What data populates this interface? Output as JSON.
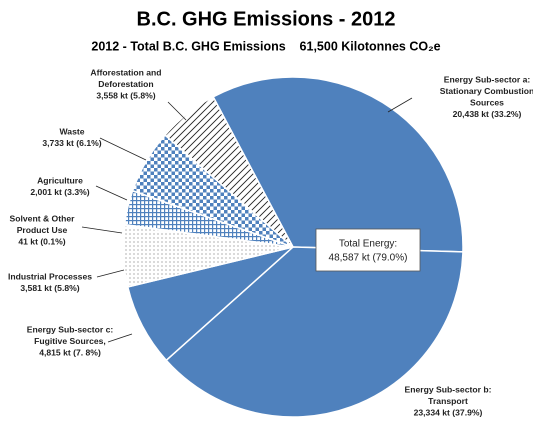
{
  "chart_data": {
    "type": "pie",
    "title": "B.C. GHG Emissions - 2012",
    "subtitle": "2012 - Total B.C. GHG Emissions    61,500 Kilotonnes CO₂e",
    "categories": [
      [
        "Energy Sub-sector a:",
        "Stationary Combustion",
        "Sources"
      ],
      [
        "Energy Sub-sector b:",
        "Transport"
      ],
      [
        "Energy Sub-sector c:",
        "Fugitive  Sources,"
      ],
      [
        "Industrial Processes"
      ],
      [
        "Solvent & Other",
        "Product Use"
      ],
      [
        "Agriculture"
      ],
      [
        "Waste"
      ],
      [
        "Afforestation and",
        "Deforestation"
      ]
    ],
    "values": [
      20438,
      23334,
      4815,
      3581,
      41,
      2001,
      3733,
      3558
    ],
    "value_labels": [
      "20,438 kt (33.2%)",
      "23,334 kt (37.9%)",
      "4,815 kt (7. 8%)",
      "3,581 kt (5.8%)",
      "41 kt (0.1%)",
      "2,001 kt (3.3%)",
      "3,733 kt (6.1%)",
      "3,558 kt (5.8%)"
    ],
    "colors": [
      "#4f81bd",
      "#4f81bd",
      "#4f81bd",
      "#7f7f7f",
      "#7f7f7f",
      "#4f81bd",
      "#4f81bd",
      "#222222"
    ],
    "patterns": [
      "solid",
      "solid",
      "solid",
      "dots",
      "dots",
      "grid-small",
      "grid-large",
      "hatch"
    ],
    "annotation": [
      "Total Energy:",
      "48,587 kt (79.0%)"
    ]
  }
}
